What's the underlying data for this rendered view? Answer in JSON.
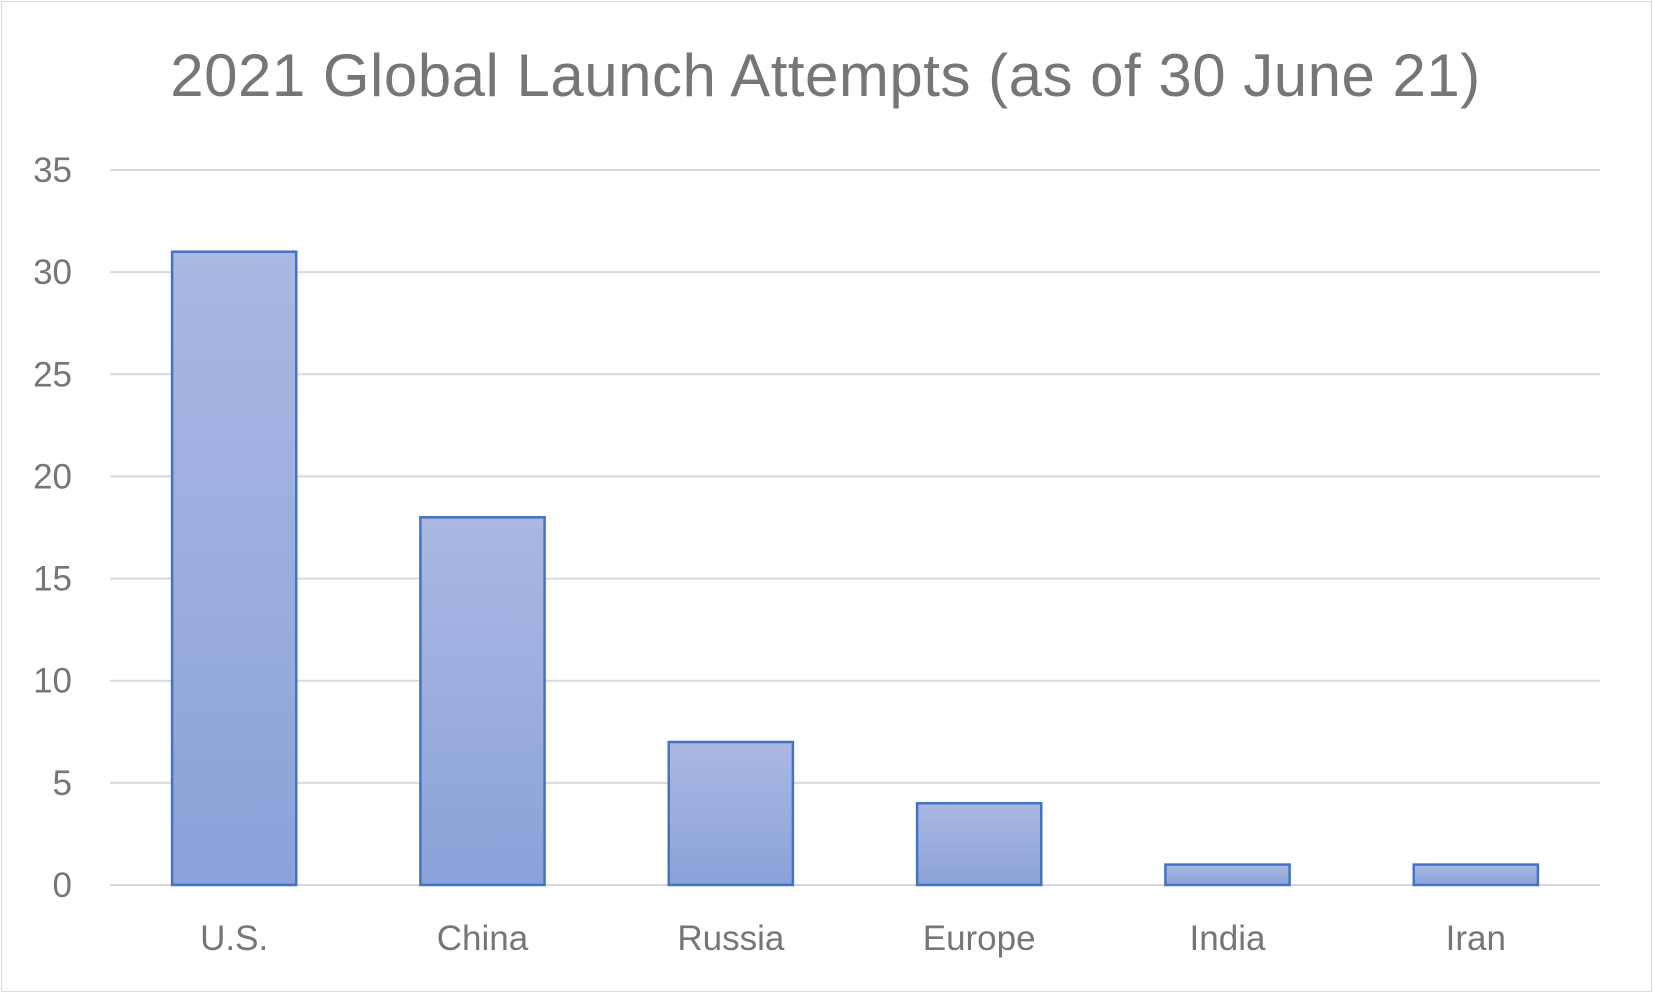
{
  "chart_data": {
    "type": "bar",
    "title": "2021 Global Launch Attempts (as of 30 June 21)",
    "categories": [
      "U.S.",
      "China",
      "Russia",
      "Europe",
      "India",
      "Iran"
    ],
    "values": [
      31,
      18,
      7,
      4,
      1,
      1
    ],
    "xlabel": "",
    "ylabel": "",
    "ylim": [
      0,
      35
    ],
    "yticks": [
      0,
      5,
      10,
      15,
      20,
      25,
      30,
      35
    ],
    "grid": true,
    "legend": "none",
    "colors": {
      "bar_fill_top": "#aab8e2",
      "bar_fill_bottom": "#8aa2d9",
      "bar_stroke": "#4472c4",
      "grid": "#d9d9d9",
      "text": "#767676"
    }
  }
}
